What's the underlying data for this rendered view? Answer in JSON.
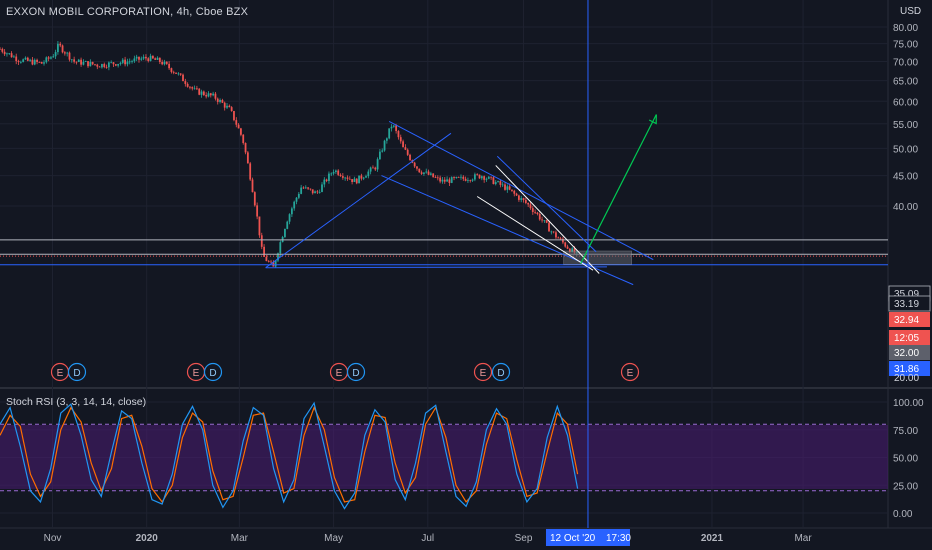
{
  "header": {
    "title": "EXXON MOBIL CORPORATION, 4h, Cboe BZX",
    "currency": "USD"
  },
  "price_axis": {
    "ticks": [
      "80.00",
      "75.00",
      "70.00",
      "65.00",
      "60.00",
      "55.00",
      "50.00",
      "45.00",
      "40.00"
    ],
    "labels": [
      {
        "text": "35.09",
        "style": "outline"
      },
      {
        "text": "33.19",
        "style": "outline"
      },
      {
        "text": "32.94",
        "style": "red"
      },
      {
        "text": "12:05",
        "style": "red"
      },
      {
        "text": "32.00",
        "style": "grey"
      },
      {
        "text": "31.86",
        "style": "blue"
      },
      {
        "text": "20.00",
        "style": "plain"
      }
    ]
  },
  "rsi_axis": {
    "ticks": [
      "100.00",
      "75.00",
      "50.00",
      "25.00",
      "0.00"
    ]
  },
  "time_axis": {
    "ticks": [
      {
        "label": "Nov",
        "bold": false
      },
      {
        "label": "2020",
        "bold": true
      },
      {
        "label": "Mar",
        "bold": false
      },
      {
        "label": "May",
        "bold": false
      },
      {
        "label": "Jul",
        "bold": false
      },
      {
        "label": "Sep",
        "bold": false
      },
      {
        "label": "2021",
        "bold": true
      },
      {
        "label": "Mar",
        "bold": false
      }
    ],
    "crosshair_date": "12 Oct '20",
    "crosshair_time": "17:30"
  },
  "indicator": {
    "label": "Stoch RSI (3, 3, 14, 14, close)"
  },
  "events": [
    "E",
    "D",
    "E",
    "D",
    "E",
    "D",
    "E",
    "D",
    "E"
  ],
  "colors": {
    "background": "#131722",
    "grid": "#1e2230",
    "up": "#26a69a",
    "down": "#ef5350",
    "trend": "#2962ff",
    "arrow": "#00c853",
    "k_line": "#2196f3",
    "d_line": "#ff6d00",
    "rsi_band": "#4a1b73"
  },
  "chart_data": {
    "type": "candlestick",
    "title": "EXXON MOBIL CORPORATION, 4h, Cboe BZX",
    "ylim": [
      20,
      80
    ],
    "yscale": "log",
    "x_range": [
      "2019-09-28",
      "2021-04-25"
    ],
    "price_path": [
      [
        "2019-09-28",
        73.5
      ],
      [
        "2019-10-10",
        70.5
      ],
      [
        "2019-10-25",
        69.5
      ],
      [
        "2019-11-01",
        71.5
      ],
      [
        "2019-11-05",
        74.5
      ],
      [
        "2019-11-15",
        70.0
      ],
      [
        "2019-12-01",
        69.0
      ],
      [
        "2019-12-20",
        70.0
      ],
      [
        "2020-01-01",
        71.0
      ],
      [
        "2020-01-10",
        70.0
      ],
      [
        "2020-01-20",
        67.0
      ],
      [
        "2020-02-01",
        62.5
      ],
      [
        "2020-02-14",
        61.0
      ],
      [
        "2020-02-24",
        58.0
      ],
      [
        "2020-03-03",
        52.0
      ],
      [
        "2020-03-10",
        42.0
      ],
      [
        "2020-03-16",
        33.0
      ],
      [
        "2020-03-23",
        31.5
      ],
      [
        "2020-04-01",
        38.0
      ],
      [
        "2020-04-10",
        43.0
      ],
      [
        "2020-04-20",
        42.0
      ],
      [
        "2020-05-01",
        46.0
      ],
      [
        "2020-05-15",
        44.0
      ],
      [
        "2020-05-28",
        46.5
      ],
      [
        "2020-06-08",
        55.0
      ],
      [
        "2020-06-15",
        50.0
      ],
      [
        "2020-06-25",
        46.0
      ],
      [
        "2020-07-10",
        44.0
      ],
      [
        "2020-07-25",
        44.5
      ],
      [
        "2020-08-05",
        45.0
      ],
      [
        "2020-08-20",
        43.0
      ],
      [
        "2020-09-05",
        40.0
      ],
      [
        "2020-09-20",
        36.0
      ],
      [
        "2020-09-30",
        34.0
      ],
      [
        "2020-10-06",
        33.0
      ]
    ],
    "horizontal_levels": [
      35.09,
      33.19,
      32.94,
      31.86
    ],
    "crosshair": "2020-10-12T17:30",
    "trendlines": [
      {
        "color": "#2962ff",
        "points": [
          [
            "2020-03-18",
            31.5
          ],
          [
            "2020-07-16",
            53.0
          ]
        ]
      },
      {
        "color": "#2962ff",
        "points": [
          [
            "2020-06-06",
            55.5
          ],
          [
            "2020-11-24",
            32.5
          ]
        ]
      },
      {
        "color": "#2962ff",
        "points": [
          [
            "2020-03-18",
            31.5
          ],
          [
            "2020-10-25",
            31.6
          ]
        ]
      },
      {
        "color": "#2962ff",
        "points": [
          [
            "2020-06-01",
            45.0
          ],
          [
            "2020-11-11",
            29.5
          ]
        ]
      },
      {
        "color": "#2962ff",
        "points": [
          [
            "2020-08-15",
            48.5
          ],
          [
            "2020-10-18",
            33.5
          ]
        ]
      },
      {
        "color": "#ffffff",
        "points": [
          [
            "2020-08-14",
            46.8
          ],
          [
            "2020-10-20",
            30.8
          ]
        ]
      },
      {
        "color": "#ffffff",
        "points": [
          [
            "2020-08-02",
            41.5
          ],
          [
            "2020-10-16",
            31.2
          ]
        ]
      }
    ],
    "projection_arrow": {
      "color": "#00c853",
      "from": [
        "2020-10-08",
        32.0
      ],
      "to": [
        "2020-11-26",
        57.0
      ]
    },
    "stoch_rsi": {
      "params": "3, 3, 14, 14, close",
      "ylim": [
        0,
        100
      ],
      "band": [
        20,
        80
      ],
      "k_series": [
        80,
        95,
        60,
        20,
        10,
        40,
        90,
        98,
        70,
        30,
        15,
        55,
        92,
        85,
        45,
        12,
        8,
        35,
        80,
        96,
        75,
        25,
        5,
        20,
        65,
        95,
        88,
        40,
        10,
        30,
        85,
        99,
        60,
        20,
        4,
        18,
        70,
        93,
        82,
        30,
        12,
        45,
        90,
        97,
        55,
        15,
        6,
        28,
        75,
        94,
        80,
        35,
        10,
        22,
        68,
        96,
        70,
        22
      ],
      "d_series": [
        70,
        88,
        78,
        35,
        15,
        28,
        75,
        95,
        82,
        45,
        20,
        40,
        85,
        88,
        60,
        22,
        10,
        25,
        68,
        90,
        82,
        38,
        12,
        15,
        50,
        88,
        90,
        55,
        18,
        22,
        70,
        95,
        75,
        32,
        10,
        12,
        55,
        88,
        86,
        45,
        18,
        32,
        80,
        95,
        68,
        25,
        10,
        20,
        62,
        90,
        85,
        48,
        15,
        18,
        55,
        90,
        80,
        35
      ]
    }
  }
}
